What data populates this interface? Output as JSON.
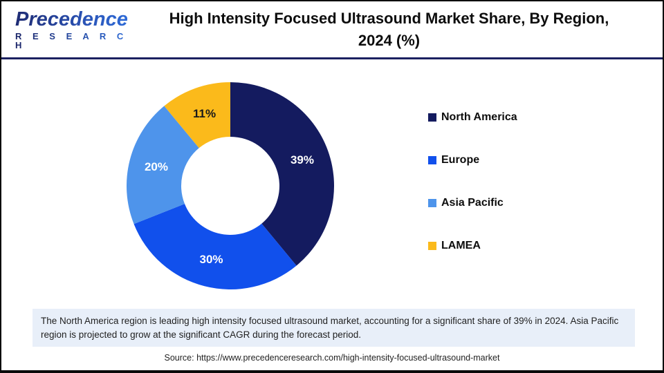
{
  "header": {
    "logo_name": "Precedence",
    "logo_subname": "R E S E A R C H",
    "title_line1": "High Intensity Focused Ultrasound Market Share, By Region,",
    "title_line2": "2024 (%)"
  },
  "chart_data": {
    "type": "pie",
    "subtype": "donut",
    "title": "High Intensity Focused Ultrasound Market Share, By Region, 2024 (%)",
    "start_angle_deg": 0,
    "direction": "clockwise",
    "categories": [
      "North America",
      "Europe",
      "Asia Pacific",
      "LAMEA"
    ],
    "values": [
      39,
      30,
      20,
      11
    ],
    "labels": [
      "39%",
      "30%",
      "20%",
      "11%"
    ],
    "colors": [
      "#141b5f",
      "#1150ec",
      "#4e94eb",
      "#fbba1b"
    ],
    "label_colors": [
      "#ffffff",
      "#ffffff",
      "#ffffff",
      "#1a1a1a"
    ],
    "legend_position": "right",
    "units": "%"
  },
  "footer": {
    "note": "The North America region is leading high intensity focused ultrasound market, accounting for a significant share of 39% in 2024. Asia Pacific region is projected to grow at the significant CAGR during the forecast period.",
    "source": "Source: https://www.precedenceresearch.com/high-intensity-focused-ultrasound-market"
  }
}
